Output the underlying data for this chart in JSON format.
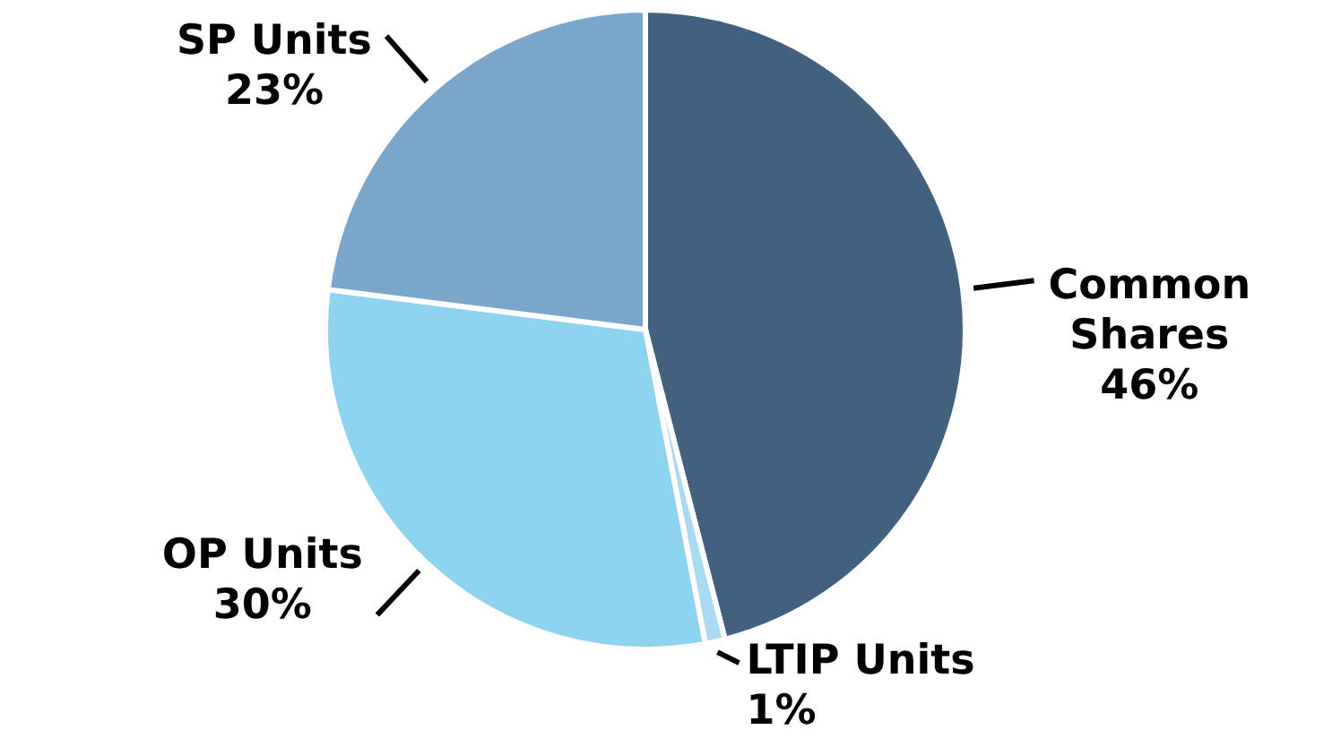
{
  "chart_data": {
    "type": "pie",
    "categories": [
      "Common Shares",
      "LTIP Units",
      "OP Units",
      "SP Units"
    ],
    "values": [
      46,
      1,
      30,
      23
    ],
    "colors": [
      "#42617f",
      "#a9daf2",
      "#8dd3f0",
      "#7aa6cc"
    ],
    "value_labels": [
      "46%",
      "1%",
      "30%",
      "23%"
    ],
    "legend": false
  }
}
